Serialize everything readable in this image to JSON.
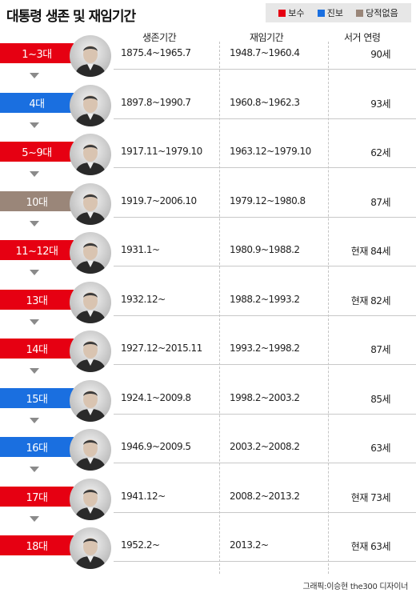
{
  "title": "대통령 생존 및 재임기간",
  "legend": {
    "items": [
      {
        "label": "보수",
        "color": "#e60012"
      },
      {
        "label": "진보",
        "color": "#1a6fe0"
      },
      {
        "label": "당적없음",
        "color": "#9a8679"
      }
    ]
  },
  "headers": {
    "life": "생존기간",
    "term": "재임기간",
    "age": "서거 연령"
  },
  "colors": {
    "conservative": "#e60012",
    "progressive": "#1a6fe0",
    "none": "#9a8679"
  },
  "rows": [
    {
      "term_no": "1~3대",
      "party": "conservative",
      "life": "1875.4~1965.7",
      "term": "1948.7~1960.4",
      "age": "90세"
    },
    {
      "term_no": "4대",
      "party": "progressive",
      "life": "1897.8~1990.7",
      "term": "1960.8~1962.3",
      "age": "93세"
    },
    {
      "term_no": "5~9대",
      "party": "conservative",
      "life": "1917.11~1979.10",
      "term": "1963.12~1979.10",
      "age": "62세"
    },
    {
      "term_no": "10대",
      "party": "none",
      "life": "1919.7~2006.10",
      "term": "1979.12~1980.8",
      "age": "87세"
    },
    {
      "term_no": "11~12대",
      "party": "conservative",
      "life": "1931.1~",
      "term": "1980.9~1988.2",
      "age": "현재 84세"
    },
    {
      "term_no": "13대",
      "party": "conservative",
      "life": "1932.12~",
      "term": "1988.2~1993.2",
      "age": "현재 82세"
    },
    {
      "term_no": "14대",
      "party": "conservative",
      "life": "1927.12~2015.11",
      "term": "1993.2~1998.2",
      "age": "87세"
    },
    {
      "term_no": "15대",
      "party": "progressive",
      "life": "1924.1~2009.8",
      "term": "1998.2~2003.2",
      "age": "85세"
    },
    {
      "term_no": "16대",
      "party": "progressive",
      "life": "1946.9~2009.5",
      "term": "2003.2~2008.2",
      "age": "63세"
    },
    {
      "term_no": "17대",
      "party": "conservative",
      "life": "1941.12~",
      "term": "2008.2~2013.2",
      "age": "현재 73세"
    },
    {
      "term_no": "18대",
      "party": "conservative",
      "life": "1952.2~",
      "term": "2013.2~",
      "age": "현재 63세"
    }
  ],
  "credit": "그래픽:이승현 the300 디자이너"
}
